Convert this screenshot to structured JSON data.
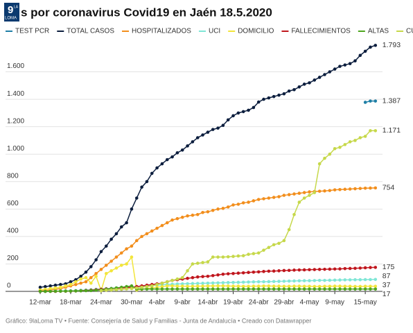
{
  "chart_data": {
    "type": "line",
    "title": "s por coronavirus Covid19 en Jaén 18.5.2020",
    "logo": [
      "9",
      "LA",
      "LOMA"
    ],
    "footer": "Gráfico: 9laLoma TV • Fuente: Consejería de Salud y Familias - Junta de Andalucía • Creado con Datawrapper",
    "categories": [
      "12-mar",
      null,
      null,
      null,
      null,
      null,
      "18-mar",
      null,
      null,
      null,
      null,
      null,
      "24-mar",
      null,
      null,
      null,
      null,
      null,
      "30-mar",
      null,
      null,
      null,
      null,
      "4-abr",
      null,
      null,
      null,
      null,
      "9-abr",
      null,
      null,
      null,
      null,
      "14-abr",
      null,
      null,
      null,
      null,
      "19-abr",
      null,
      null,
      null,
      null,
      "24-abr",
      null,
      null,
      null,
      null,
      "29-abr",
      null,
      null,
      null,
      null,
      "4-may",
      null,
      null,
      null,
      null,
      "9-may",
      null,
      null,
      null,
      null,
      null,
      "15-may",
      null,
      null
    ],
    "ylim": [
      0,
      1800
    ],
    "yticks": [
      0,
      200,
      400,
      600,
      800,
      {
        "value": 1000,
        "label": "1.000"
      },
      {
        "value": 1200,
        "label": "1.200"
      },
      {
        "value": 1400,
        "label": "1.400"
      },
      {
        "value": 1600,
        "label": "1.600"
      }
    ],
    "grid": true,
    "legend": "top",
    "series": [
      {
        "name": "TEST PCR",
        "color": "#1f7fa6",
        "values": [
          null,
          null,
          null,
          null,
          null,
          null,
          null,
          null,
          null,
          null,
          null,
          null,
          null,
          null,
          null,
          null,
          null,
          null,
          null,
          null,
          null,
          null,
          null,
          null,
          null,
          null,
          null,
          null,
          null,
          null,
          null,
          null,
          null,
          null,
          null,
          null,
          null,
          null,
          null,
          null,
          null,
          null,
          null,
          null,
          null,
          null,
          null,
          null,
          null,
          null,
          null,
          null,
          null,
          null,
          null,
          null,
          null,
          null,
          null,
          null,
          null,
          null,
          null,
          null,
          1378,
          1387,
          1387
        ],
        "value_labels": [
          null,
          null,
          null,
          null,
          null,
          null,
          null,
          null,
          null,
          null,
          null,
          null,
          null,
          null,
          null,
          null,
          null,
          null,
          null,
          null,
          null,
          null,
          null,
          null,
          null,
          null,
          null,
          null,
          null,
          null,
          null,
          null,
          null,
          null,
          null,
          null,
          null,
          null,
          null,
          null,
          null,
          null,
          null,
          null,
          null,
          null,
          null,
          null,
          null,
          null,
          null,
          null,
          null,
          null,
          null,
          null,
          null,
          null,
          null,
          null,
          null,
          null,
          null,
          null,
          null,
          null,
          "1.387"
        ]
      },
      {
        "name": "TOTAL CASOS",
        "color": "#0c1e3e",
        "values": [
          30,
          35,
          40,
          45,
          50,
          55,
          70,
          85,
          110,
          140,
          180,
          230,
          290,
          330,
          380,
          420,
          470,
          500,
          600,
          680,
          760,
          800,
          860,
          900,
          930,
          960,
          980,
          1010,
          1030,
          1060,
          1090,
          1120,
          1140,
          1160,
          1180,
          1190,
          1210,
          1250,
          1280,
          1300,
          1310,
          1320,
          1340,
          1380,
          1400,
          1410,
          1420,
          1430,
          1440,
          1460,
          1470,
          1490,
          1510,
          1520,
          1540,
          1560,
          1580,
          1600,
          1620,
          1640,
          1650,
          1660,
          1680,
          1720,
          1750,
          1780,
          1793
        ],
        "value_labels": [
          null,
          null,
          null,
          null,
          null,
          null,
          null,
          null,
          null,
          null,
          null,
          null,
          null,
          null,
          null,
          null,
          null,
          null,
          null,
          null,
          null,
          null,
          null,
          null,
          null,
          null,
          null,
          null,
          null,
          null,
          null,
          null,
          null,
          null,
          null,
          null,
          null,
          null,
          null,
          null,
          null,
          null,
          null,
          null,
          null,
          null,
          null,
          null,
          null,
          null,
          null,
          null,
          null,
          null,
          null,
          null,
          null,
          null,
          null,
          null,
          null,
          null,
          null,
          null,
          null,
          null,
          "1.793"
        ]
      },
      {
        "name": "HOSPITALIZADOS",
        "color": "#f28e1c",
        "values": [
          5,
          5,
          10,
          15,
          20,
          30,
          40,
          50,
          60,
          70,
          100,
          130,
          160,
          190,
          220,
          250,
          280,
          310,
          330,
          370,
          400,
          420,
          440,
          460,
          480,
          500,
          520,
          530,
          540,
          550,
          555,
          560,
          575,
          580,
          590,
          600,
          605,
          615,
          630,
          635,
          645,
          650,
          660,
          670,
          675,
          680,
          685,
          690,
          700,
          705,
          710,
          715,
          720,
          725,
          728,
          730,
          732,
          735,
          740,
          742,
          744,
          746,
          748,
          750,
          752,
          753,
          754
        ],
        "value_labels": [
          null,
          null,
          null,
          null,
          null,
          null,
          null,
          null,
          null,
          null,
          null,
          null,
          null,
          null,
          null,
          null,
          null,
          null,
          null,
          null,
          null,
          null,
          null,
          null,
          null,
          null,
          null,
          null,
          null,
          null,
          null,
          null,
          null,
          null,
          null,
          null,
          null,
          null,
          null,
          null,
          null,
          null,
          null,
          null,
          null,
          null,
          null,
          null,
          null,
          null,
          null,
          null,
          null,
          null,
          null,
          null,
          null,
          null,
          null,
          null,
          null,
          null,
          null,
          null,
          null,
          null,
          "754"
        ]
      },
      {
        "name": "UCI",
        "color": "#7fe6d6",
        "values": [
          0,
          0,
          1,
          2,
          3,
          4,
          5,
          6,
          8,
          10,
          12,
          15,
          18,
          20,
          22,
          25,
          28,
          30,
          32,
          35,
          38,
          40,
          42,
          45,
          48,
          50,
          52,
          54,
          55,
          56,
          57,
          58,
          59,
          60,
          61,
          62,
          63,
          64,
          65,
          66,
          67,
          68,
          69,
          70,
          70,
          71,
          72,
          73,
          74,
          75,
          76,
          77,
          78,
          78,
          79,
          80,
          80,
          81,
          82,
          83,
          84,
          84,
          85,
          85,
          86,
          86,
          87
        ],
        "value_labels": [
          null,
          null,
          null,
          null,
          null,
          null,
          null,
          null,
          null,
          null,
          null,
          null,
          null,
          null,
          null,
          null,
          null,
          null,
          null,
          null,
          null,
          null,
          null,
          null,
          null,
          null,
          null,
          null,
          null,
          null,
          null,
          null,
          null,
          null,
          null,
          null,
          null,
          null,
          null,
          null,
          null,
          null,
          null,
          null,
          null,
          null,
          null,
          null,
          null,
          null,
          null,
          null,
          null,
          null,
          null,
          null,
          null,
          null,
          null,
          null,
          null,
          null,
          null,
          null,
          null,
          null,
          "87"
        ]
      },
      {
        "name": "DOMICILIO",
        "color": "#f2e53a",
        "values": [
          10,
          15,
          20,
          25,
          30,
          40,
          50,
          70,
          90,
          100,
          60,
          110,
          5,
          130,
          150,
          170,
          190,
          200,
          250,
          10,
          15,
          20,
          25,
          30,
          35,
          40,
          40,
          38,
          38,
          37,
          37,
          38,
          38,
          39,
          39,
          40,
          40,
          39,
          38,
          38,
          37,
          37,
          38,
          38,
          39,
          39,
          38,
          38,
          37,
          37,
          38,
          38,
          37,
          37,
          36,
          36,
          37,
          37,
          38,
          38,
          37,
          37,
          36,
          36,
          37,
          37,
          37
        ],
        "value_labels": [
          null,
          null,
          null,
          null,
          null,
          null,
          null,
          null,
          null,
          null,
          null,
          null,
          null,
          null,
          null,
          null,
          null,
          null,
          null,
          null,
          null,
          null,
          null,
          null,
          null,
          null,
          null,
          null,
          null,
          null,
          null,
          null,
          null,
          null,
          null,
          null,
          null,
          null,
          null,
          null,
          null,
          null,
          null,
          null,
          null,
          null,
          null,
          null,
          null,
          null,
          null,
          null,
          null,
          null,
          null,
          null,
          null,
          null,
          null,
          null,
          null,
          null,
          null,
          null,
          null,
          null,
          "37"
        ]
      },
      {
        "name": "FALLECIMIENTOS",
        "color": "#c0161d",
        "values": [
          0,
          0,
          0,
          0,
          1,
          1,
          2,
          3,
          5,
          7,
          9,
          12,
          15,
          18,
          20,
          22,
          25,
          28,
          30,
          35,
          40,
          45,
          50,
          55,
          60,
          70,
          80,
          85,
          90,
          95,
          100,
          105,
          108,
          110,
          115,
          120,
          125,
          128,
          130,
          133,
          135,
          138,
          140,
          142,
          145,
          147,
          148,
          150,
          152,
          153,
          155,
          156,
          157,
          158,
          159,
          160,
          161,
          162,
          163,
          164,
          166,
          167,
          168,
          170,
          172,
          174,
          175
        ],
        "value_labels": [
          null,
          null,
          null,
          null,
          null,
          null,
          null,
          null,
          null,
          null,
          null,
          null,
          null,
          null,
          null,
          null,
          null,
          null,
          null,
          null,
          null,
          null,
          null,
          null,
          null,
          null,
          null,
          null,
          null,
          null,
          null,
          null,
          null,
          null,
          null,
          null,
          null,
          null,
          null,
          null,
          null,
          null,
          null,
          null,
          null,
          null,
          null,
          null,
          null,
          null,
          null,
          null,
          null,
          null,
          null,
          null,
          null,
          null,
          null,
          null,
          null,
          null,
          null,
          null,
          null,
          null,
          "175"
        ]
      },
      {
        "name": "ALTAS",
        "color": "#4ea51e",
        "values": [
          0,
          0,
          0,
          1,
          1,
          2,
          2,
          3,
          4,
          5,
          6,
          8,
          10,
          15,
          20,
          25,
          30,
          35,
          40,
          17,
          17,
          17,
          17,
          17,
          17,
          17,
          17,
          17,
          17,
          17,
          17,
          17,
          17,
          17,
          17,
          17,
          17,
          17,
          17,
          17,
          17,
          17,
          17,
          17,
          17,
          17,
          17,
          17,
          17,
          17,
          17,
          17,
          17,
          17,
          17,
          17,
          17,
          17,
          17,
          17,
          17,
          17,
          17,
          17,
          17,
          17,
          17
        ],
        "value_labels": [
          null,
          null,
          null,
          null,
          null,
          null,
          null,
          null,
          null,
          null,
          null,
          null,
          null,
          null,
          null,
          null,
          null,
          null,
          null,
          null,
          null,
          null,
          null,
          null,
          null,
          null,
          null,
          null,
          null,
          null,
          null,
          null,
          null,
          null,
          null,
          null,
          null,
          null,
          null,
          null,
          null,
          null,
          null,
          null,
          null,
          null,
          null,
          null,
          null,
          null,
          null,
          null,
          null,
          null,
          null,
          null,
          null,
          null,
          null,
          null,
          null,
          null,
          null,
          null,
          null,
          null,
          "17"
        ]
      },
      {
        "name": "CURADOS",
        "color": "#c6d84a",
        "values": [
          null,
          null,
          null,
          null,
          null,
          null,
          null,
          null,
          null,
          null,
          null,
          null,
          5,
          8,
          10,
          12,
          15,
          18,
          20,
          25,
          30,
          35,
          40,
          50,
          60,
          70,
          80,
          90,
          100,
          150,
          200,
          205,
          210,
          215,
          250,
          250,
          250,
          252,
          255,
          258,
          260,
          270,
          275,
          280,
          300,
          320,
          340,
          350,
          370,
          450,
          560,
          650,
          680,
          700,
          720,
          930,
          970,
          1000,
          1040,
          1050,
          1070,
          1090,
          1100,
          1120,
          1130,
          1171,
          1171
        ],
        "value_labels": [
          null,
          null,
          null,
          null,
          null,
          null,
          null,
          null,
          null,
          null,
          null,
          null,
          null,
          null,
          null,
          null,
          null,
          null,
          null,
          null,
          null,
          null,
          null,
          null,
          null,
          null,
          null,
          null,
          null,
          null,
          null,
          null,
          null,
          null,
          null,
          null,
          null,
          null,
          null,
          null,
          null,
          null,
          null,
          null,
          null,
          null,
          null,
          null,
          null,
          null,
          null,
          null,
          null,
          null,
          null,
          null,
          null,
          null,
          null,
          null,
          null,
          null,
          null,
          null,
          null,
          null,
          "1.171"
        ]
      }
    ]
  }
}
